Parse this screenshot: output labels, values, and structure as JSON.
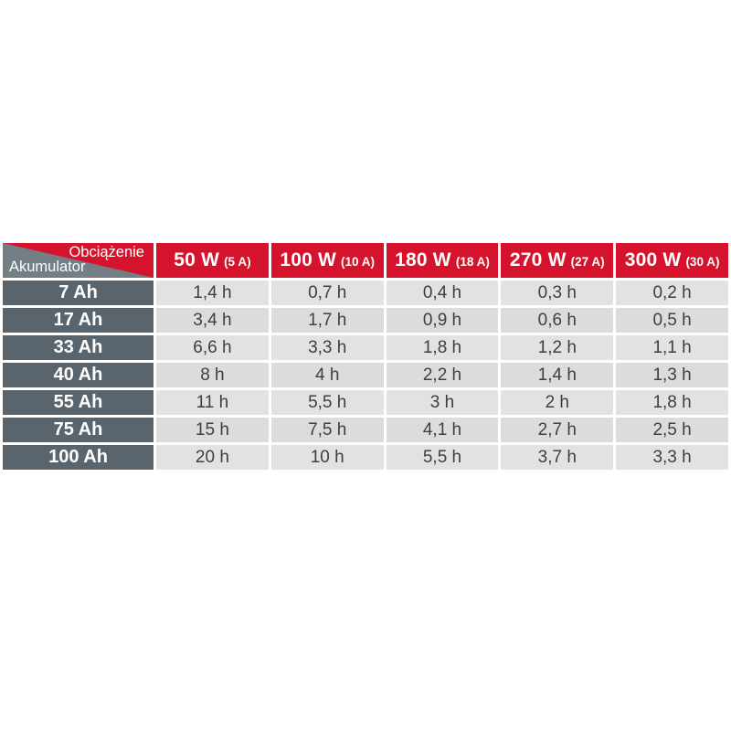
{
  "page": {
    "background": "#ffffff"
  },
  "colors": {
    "header_red": "#d6132d",
    "row_header_gray": "#5a646c",
    "corner_triangle_gray": "#747e85",
    "cell_bg": "#e2e2e2",
    "cell_bg_alt": "#dcdcdc",
    "gridline_white": "#ffffff",
    "data_text": "#3b4045",
    "header_text": "#ffffff"
  },
  "table": {
    "corner": {
      "load_label": "Obciążenie",
      "battery_label": "Akumulator"
    },
    "columns": [
      {
        "power": "50 W",
        "amps": "(5 A)"
      },
      {
        "power": "100 W",
        "amps": "(10 A)"
      },
      {
        "power": "180 W",
        "amps": "(18 A)"
      },
      {
        "power": "270 W",
        "amps": "(27 A)"
      },
      {
        "power": "300 W",
        "amps": "(30 A)"
      }
    ],
    "rows": [
      {
        "capacity": "7 Ah",
        "values": [
          "1,4 h",
          "0,7 h",
          "0,4 h",
          "0,3 h",
          "0,2 h"
        ]
      },
      {
        "capacity": "17 Ah",
        "values": [
          "3,4 h",
          "1,7 h",
          "0,9 h",
          "0,6 h",
          "0,5 h"
        ]
      },
      {
        "capacity": "33 Ah",
        "values": [
          "6,6 h",
          "3,3 h",
          "1,8 h",
          "1,2 h",
          "1,1 h"
        ]
      },
      {
        "capacity": "40 Ah",
        "values": [
          "8 h",
          "4 h",
          "2,2 h",
          "1,4 h",
          "1,3 h"
        ]
      },
      {
        "capacity": "55 Ah",
        "values": [
          "11 h",
          "5,5 h",
          "3 h",
          "2 h",
          "1,8 h"
        ]
      },
      {
        "capacity": "75 Ah",
        "values": [
          "15 h",
          "7,5 h",
          "4,1 h",
          "2,7 h",
          "2,5 h"
        ]
      },
      {
        "capacity": "100 Ah",
        "values": [
          "20 h",
          "10 h",
          "5,5 h",
          "3,7 h",
          "3,3 h"
        ]
      }
    ]
  },
  "chart_data": {
    "type": "table",
    "title": "",
    "column_axis_label": "Obciążenie",
    "row_axis_label": "Akumulator",
    "columns": [
      "50 W (5 A)",
      "100 W (10 A)",
      "180 W (18 A)",
      "270 W (27 A)",
      "300 W (30 A)"
    ],
    "rows": [
      "7 Ah",
      "17 Ah",
      "33 Ah",
      "40 Ah",
      "55 Ah",
      "75 Ah",
      "100 Ah"
    ],
    "values_hours": [
      [
        1.4,
        0.7,
        0.4,
        0.3,
        0.2
      ],
      [
        3.4,
        1.7,
        0.9,
        0.6,
        0.5
      ],
      [
        6.6,
        3.3,
        1.8,
        1.2,
        1.1
      ],
      [
        8,
        4,
        2.2,
        1.4,
        1.3
      ],
      [
        11,
        5.5,
        3,
        2,
        1.8
      ],
      [
        15,
        7.5,
        4.1,
        2.7,
        2.5
      ],
      [
        20,
        10,
        5.5,
        3.7,
        3.3
      ]
    ]
  }
}
